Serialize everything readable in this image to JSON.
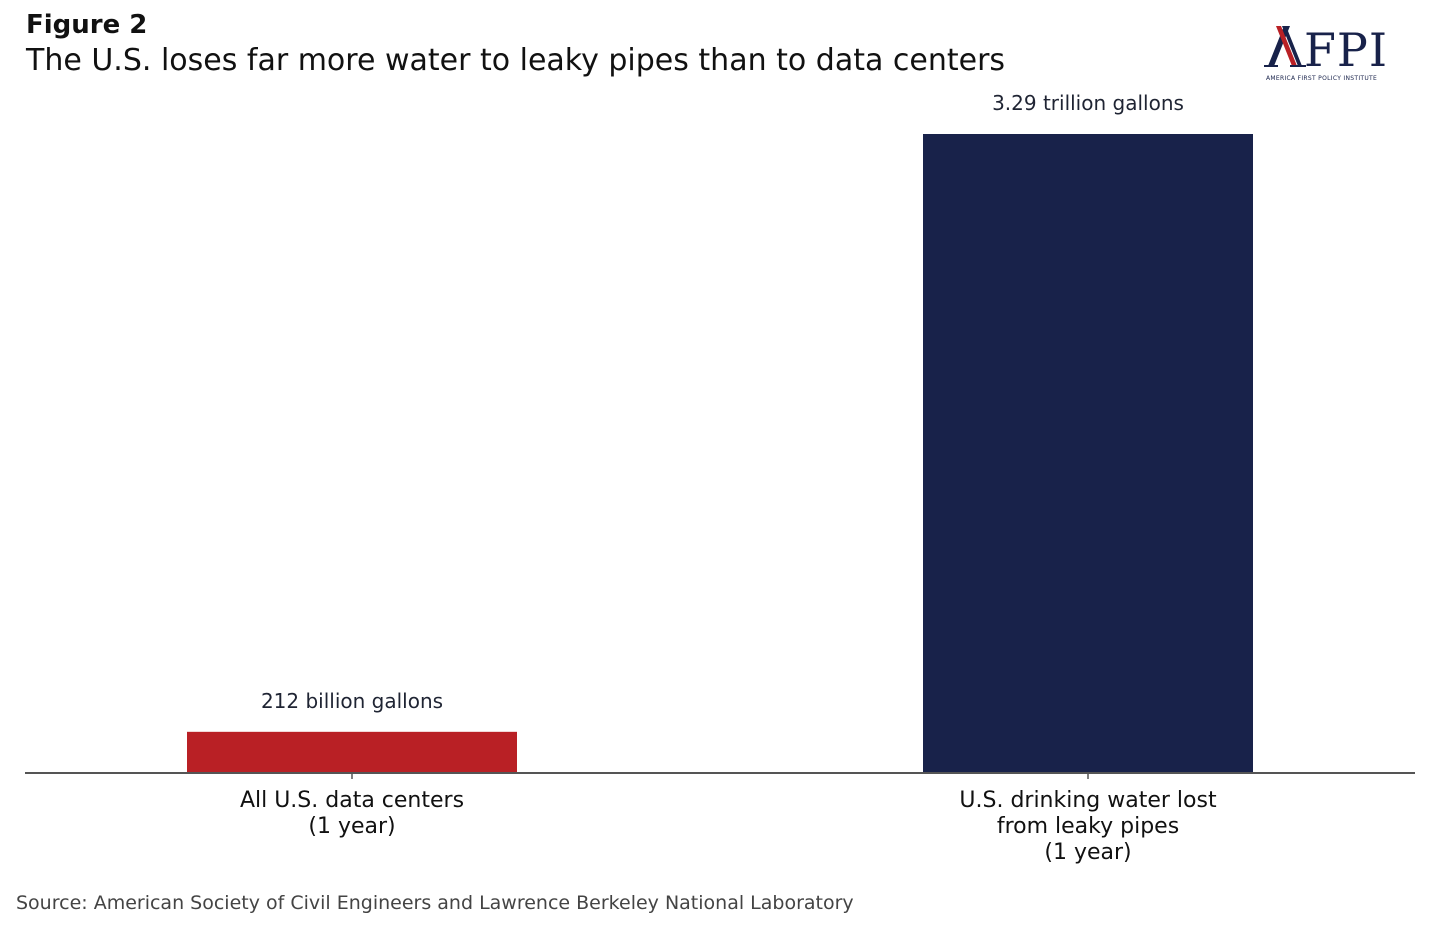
{
  "figure_label": "Figure 2",
  "logo": {
    "wordmark": "AFPI",
    "tagline": "AMERICA FIRST POLICY INSTITUTE",
    "colors": {
      "navy": "#18224a",
      "red": "#b92025"
    }
  },
  "source": "Source: American Society of Civil Engineers and Lawrence Berkeley National Laboratory",
  "chart_data": {
    "type": "bar",
    "title": "The U.S. loses far more water to leaky pipes than to data centers",
    "xlabel": "",
    "ylabel": "",
    "unit": "billion gallons",
    "ylim": [
      0,
      3290
    ],
    "grid": false,
    "legend": "none",
    "categories": [
      [
        "All U.S. data centers",
        "(1 year)"
      ],
      [
        "U.S. drinking water lost",
        "from leaky pipes",
        "(1 year)"
      ]
    ],
    "values": [
      212,
      3290
    ],
    "data_labels": [
      "212 billion gallons",
      "3.29 trillion gallons"
    ],
    "colors": [
      "#b92025",
      "#18224a"
    ]
  }
}
